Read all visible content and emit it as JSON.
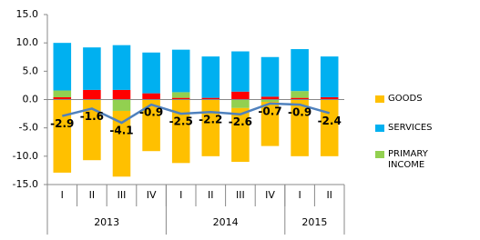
{
  "chart_data": {
    "type": "bar",
    "categories": [
      "I",
      "II",
      "III",
      "IV",
      "I",
      "II",
      "III",
      "IV",
      "I",
      "II"
    ],
    "category_groups": [
      {
        "label": "2013",
        "count": 4
      },
      {
        "label": "2014",
        "count": 4
      },
      {
        "label": "2015",
        "count": 2
      }
    ],
    "series": [
      {
        "color": "#FF0000",
        "values": [
          0.4,
          1.7,
          1.7,
          1.1,
          0.3,
          0.3,
          1.4,
          0.5,
          0.3,
          0.4
        ]
      },
      {
        "name": "PRIMARY INCOME",
        "color": "#92D050",
        "values": [
          1.2,
          0,
          -2.0,
          0,
          1.0,
          0,
          -1.5,
          -0.4,
          1.2,
          0
        ]
      },
      {
        "name": "SERVICES",
        "color": "#00B0F0",
        "values": [
          8.4,
          7.5,
          7.9,
          7.2,
          7.5,
          7.3,
          7.1,
          7.0,
          7.4,
          7.2
        ]
      },
      {
        "name": "GOODS",
        "color": "#FFC000",
        "values": [
          -12.9,
          -10.7,
          -11.6,
          -9.1,
          -11.2,
          -10.0,
          -9.5,
          -7.8,
          -10.0,
          -10.0
        ]
      },
      {
        "type": "line",
        "color": "#4F81BD",
        "values": [
          -2.9,
          -1.6,
          -4.1,
          -0.9,
          -2.5,
          -2.2,
          -2.6,
          -0.7,
          -0.9,
          -2.4
        ]
      }
    ],
    "ylim": [
      -15,
      15
    ],
    "yticks": [
      {
        "value": -15,
        "label": "-15.0"
      },
      {
        "value": -10,
        "label": "-10.0"
      },
      {
        "value": -5,
        "label": "-5.0"
      },
      {
        "value": 0,
        "label": "0.0"
      },
      {
        "value": 5,
        "label": "5.0"
      },
      {
        "value": 10,
        "label": "10.0"
      },
      {
        "value": 15,
        "label": "15.0"
      }
    ]
  }
}
